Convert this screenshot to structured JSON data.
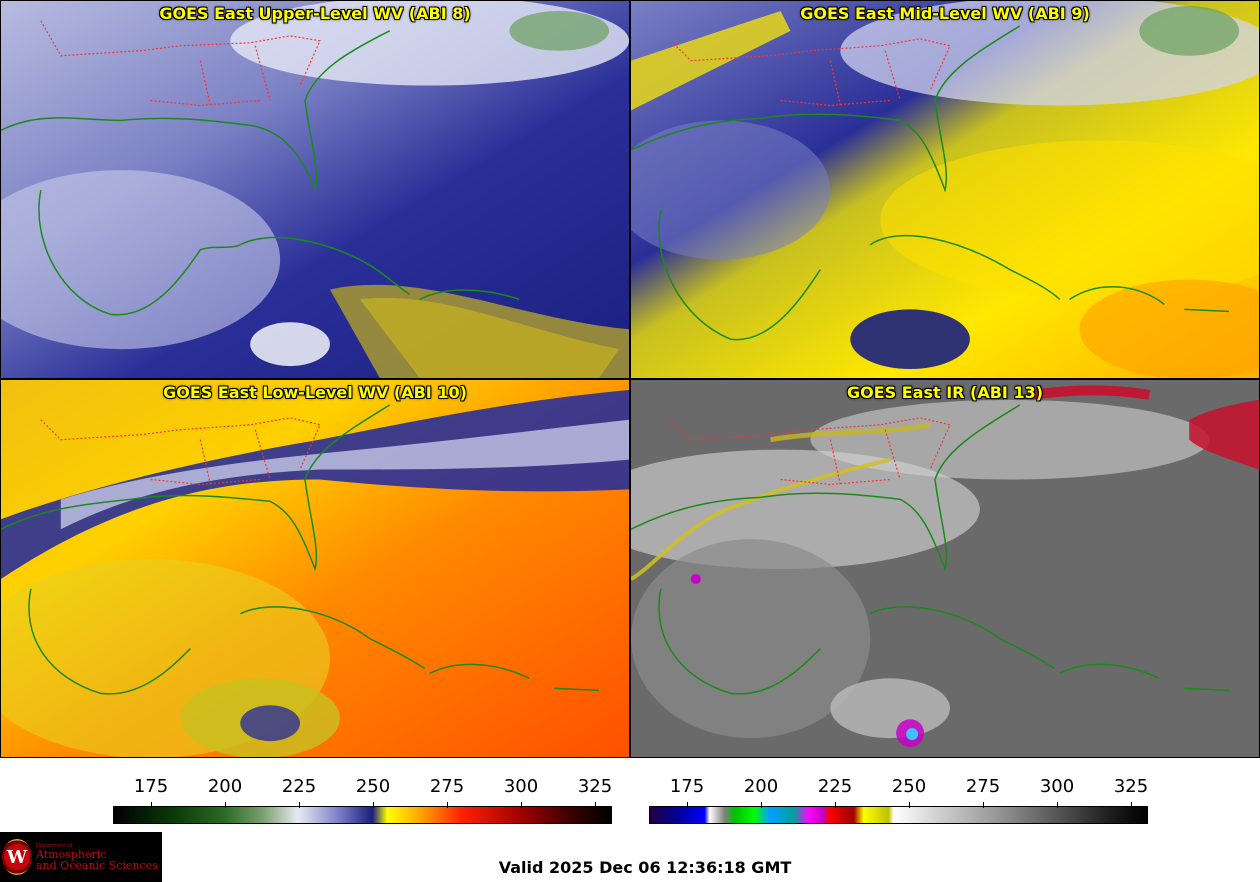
{
  "panels": [
    {
      "title": "GOES East Upper-Level WV (ABI 8)",
      "palette": "wv"
    },
    {
      "title": "GOES East Mid-Level WV (ABI 9)",
      "palette": "wv"
    },
    {
      "title": "GOES East Low-Level WV (ABI 10)",
      "palette": "wv"
    },
    {
      "title": "GOES East IR (ABI 13)",
      "palette": "ir"
    }
  ],
  "colorbars": {
    "wv": {
      "ticks": [
        "175",
        "200",
        "225",
        "250",
        "275",
        "300",
        "325"
      ]
    },
    "ir": {
      "ticks": [
        "175",
        "200",
        "225",
        "250",
        "275",
        "300",
        "325"
      ]
    }
  },
  "footer": {
    "valid_text": "Valid 2025 Dec 06 12:36:18 GMT",
    "logo_dept": "Department of",
    "logo_line1": "Atmospheric",
    "logo_line2": "and Oceanic Sciences",
    "logo_letter": "W"
  },
  "colors": {
    "title": "#ffff00",
    "coast": "#1a8a1a",
    "state": "#ff3030"
  }
}
